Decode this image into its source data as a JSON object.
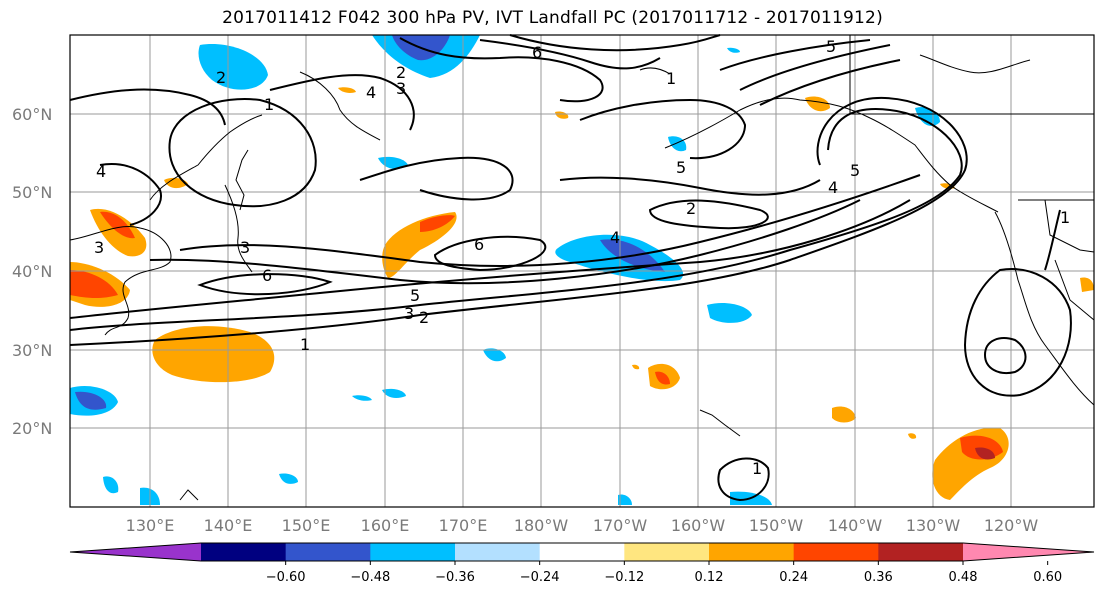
{
  "title": "2017011412 F042 300 hPa PV, IVT Landfall PC (2017011712 - 2017011912)",
  "lat_labels": [
    "60°N",
    "50°N",
    "40°N",
    "30°N",
    "20°N"
  ],
  "lon_labels": [
    "130°E",
    "140°E",
    "150°E",
    "160°E",
    "170°E",
    "180°W",
    "170°W",
    "160°W",
    "150°W",
    "140°W",
    "130°W",
    "120°W"
  ],
  "colorbar": {
    "colors": [
      "#9933cc",
      "#000080",
      "#3355cc",
      "#00bfff",
      "#b3e0ff",
      "#ffffff",
      "#ffe680",
      "#ffa500",
      "#ff4500",
      "#b22222",
      "#ff88b0"
    ],
    "tick_labels": [
      "−0.60",
      "−0.48",
      "−0.36",
      "−0.24",
      "−0.12",
      "0.12",
      "0.24",
      "0.36",
      "0.48",
      "0.60"
    ]
  },
  "contour_labels": [
    "1",
    "2",
    "3",
    "4",
    "5",
    "6",
    "2",
    "3",
    "4",
    "3",
    "6",
    "5",
    "3",
    "2",
    "1",
    "1",
    "2",
    "6",
    "4",
    "5",
    "5",
    "4",
    "1",
    "1"
  ]
}
